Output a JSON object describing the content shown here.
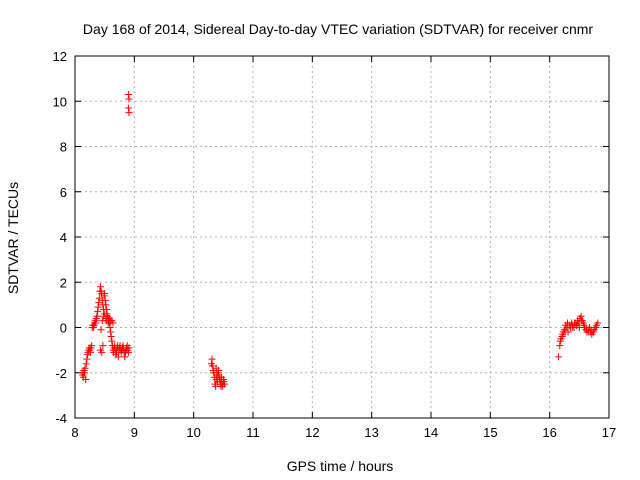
{
  "chart_data": {
    "type": "scatter",
    "title": "Day 168 of 2014, Sidereal Day-to-day VTEC variation (SDTVAR) for receiver cnmr",
    "xlabel": "GPS time / hours",
    "ylabel": "SDTVAR / TECUs",
    "xlim": [
      8,
      17
    ],
    "ylim": [
      -4,
      12
    ],
    "xticks": [
      "8",
      "9",
      "10",
      "11",
      "12",
      "13",
      "14",
      "15",
      "16",
      "17"
    ],
    "yticks": [
      "-4",
      "-2",
      "0",
      "2",
      "4",
      "6",
      "8",
      "10",
      "12"
    ],
    "grid": true,
    "marker": "+",
    "color": "#ff0000",
    "series": [
      {
        "name": "SDTVAR",
        "x": [
          8.12,
          8.13,
          8.14,
          8.15,
          8.16,
          8.17,
          8.18,
          8.19,
          8.2,
          8.21,
          8.22,
          8.23,
          8.24,
          8.25,
          8.26,
          8.27,
          8.28,
          8.29,
          8.3,
          8.31,
          8.32,
          8.33,
          8.34,
          8.35,
          8.36,
          8.37,
          8.38,
          8.39,
          8.4,
          8.41,
          8.42,
          8.43,
          8.44,
          8.45,
          8.46,
          8.47,
          8.48,
          8.49,
          8.5,
          8.51,
          8.52,
          8.53,
          8.54,
          8.55,
          8.56,
          8.57,
          8.58,
          8.59,
          8.6,
          8.61,
          8.62,
          8.63,
          8.64,
          8.65,
          8.66,
          8.67,
          8.68,
          8.69,
          8.7,
          8.71,
          8.72,
          8.73,
          8.74,
          8.75,
          8.76,
          8.77,
          8.78,
          8.79,
          8.8,
          8.81,
          8.82,
          8.83,
          8.84,
          8.85,
          8.86,
          8.87,
          8.88,
          8.89,
          8.9,
          8.91,
          8.43,
          8.45,
          8.47,
          8.44,
          8.46,
          8.48,
          8.5,
          8.52,
          8.53,
          8.56,
          8.58,
          8.6,
          8.62,
          8.64,
          8.9,
          8.91,
          8.9,
          8.91,
          10.3,
          10.31,
          10.32,
          10.33,
          10.34,
          10.35,
          10.36,
          10.37,
          10.38,
          10.39,
          10.4,
          10.41,
          10.42,
          10.43,
          10.44,
          10.45,
          10.46,
          10.47,
          10.48,
          10.49,
          10.5,
          10.51,
          10.52,
          10.38,
          10.42,
          10.46,
          16.15,
          16.17,
          16.19,
          16.21,
          16.23,
          16.25,
          16.27,
          16.29,
          16.31,
          16.33,
          16.35,
          16.37,
          16.39,
          16.41,
          16.43,
          16.45,
          16.47,
          16.49,
          16.51,
          16.53,
          16.55,
          16.57,
          16.59,
          16.61,
          16.63,
          16.65,
          16.67,
          16.69,
          16.71,
          16.73,
          16.75,
          16.77,
          16.79,
          16.81,
          16.18,
          16.22,
          16.26,
          16.3,
          16.34,
          16.38,
          16.42,
          16.46,
          16.5,
          16.54,
          16.58,
          16.62,
          16.66,
          16.7,
          16.74,
          16.78
        ],
        "y": [
          -2.0,
          -2.1,
          -2.2,
          -1.9,
          -2.0,
          -1.8,
          -2.3,
          -1.6,
          -1.4,
          -1.2,
          -1.1,
          -1.0,
          -0.9,
          -1.0,
          -1.1,
          -0.9,
          -0.8,
          0.0,
          0.1,
          0.0,
          0.1,
          0.2,
          0.3,
          0.2,
          0.4,
          0.5,
          0.7,
          0.9,
          1.1,
          1.3,
          1.6,
          1.8,
          1.6,
          1.5,
          1.2,
          1.0,
          0.8,
          1.4,
          1.5,
          1.2,
          1.0,
          0.8,
          0.6,
          0.5,
          0.4,
          0.3,
          0.2,
          0.0,
          -0.2,
          -0.4,
          -0.6,
          -0.8,
          -1.0,
          -1.1,
          -0.9,
          -0.8,
          -1.0,
          -1.2,
          -1.1,
          -0.9,
          -0.8,
          -1.3,
          -1.0,
          -0.9,
          -0.8,
          -1.0,
          -1.1,
          -1.0,
          -0.9,
          -0.8,
          -1.0,
          -1.1,
          -1.3,
          -1.1,
          -1.0,
          -0.9,
          -0.8,
          -1.0,
          -1.1,
          -0.9,
          -1.0,
          -1.1,
          -0.8,
          -0.1,
          0.3,
          0.5,
          0.6,
          0.4,
          0.3,
          0.2,
          0.4,
          0.3,
          0.3,
          0.2,
          10.3,
          10.1,
          9.7,
          9.5,
          -1.6,
          -1.4,
          -1.7,
          -1.9,
          -2.0,
          -2.2,
          -2.5,
          -2.6,
          -2.3,
          -2.1,
          -2.4,
          -2.0,
          -1.9,
          -2.2,
          -2.3,
          -2.5,
          -2.4,
          -2.2,
          -2.5,
          -2.6,
          -2.3,
          -2.4,
          -2.5,
          -1.8,
          -2.1,
          -2.6,
          -1.3,
          -0.8,
          -0.5,
          -0.4,
          -0.2,
          -0.1,
          0.1,
          0.0,
          -0.2,
          0.1,
          0.0,
          0.2,
          0.1,
          0.0,
          0.2,
          0.1,
          0.3,
          0.2,
          0.4,
          0.5,
          0.3,
          0.2,
          0.0,
          -0.1,
          -0.2,
          -0.1,
          0.0,
          -0.2,
          -0.3,
          -0.2,
          -0.1,
          0.0,
          0.1,
          0.2,
          -0.6,
          -0.3,
          -0.2,
          0.2,
          0.1,
          0.0,
          0.2,
          0.1,
          0.0,
          0.3,
          0.1,
          -0.1,
          -0.2,
          -0.1,
          -0.2,
          0.0
        ]
      }
    ]
  }
}
